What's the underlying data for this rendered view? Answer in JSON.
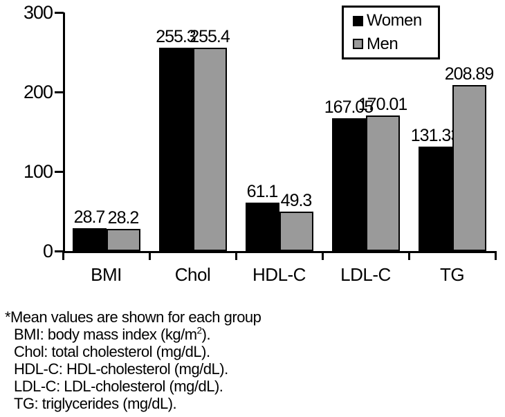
{
  "chart_data": {
    "type": "bar",
    "categories": [
      "BMI",
      "Chol",
      "HDL-C",
      "LDL-C",
      "TG"
    ],
    "series": [
      {
        "name": "Women",
        "color": "#000000",
        "values": [
          28.7,
          255.3,
          61.1,
          167.05,
          131.33
        ]
      },
      {
        "name": "Men",
        "color": "#9a9a9a",
        "values": [
          28.2,
          255.4,
          49.3,
          170.01,
          208.89
        ]
      }
    ],
    "title": "",
    "xlabel": "",
    "ylabel": "",
    "ylim": [
      0,
      300
    ],
    "yticks": [
      0,
      100,
      200,
      300
    ],
    "grid": false,
    "legend_position": "top-right",
    "value_labels_shown": true
  },
  "legend": {
    "items": [
      {
        "label": "Women",
        "color": "#000000"
      },
      {
        "label": "Men",
        "color": "#9a9a9a"
      }
    ]
  },
  "footnote": {
    "line1": "*Mean values are shown for each group",
    "bmi_prefix": "BMI: body mass index (kg/m",
    "bmi_sup": "2",
    "bmi_suffix": ").",
    "chol": "Chol: total cholesterol (mg/dL).",
    "hdl": "HDL-C: HDL-cholesterol (mg/dL).",
    "ldl": "LDL-C: LDL-cholesterol (mg/dL).",
    "tg": "TG: triglycerides (mg/dL)."
  },
  "colors": {
    "women_bar": "#000000",
    "men_bar": "#9a9a9a",
    "axis": "#000000",
    "background": "#ffffff"
  }
}
